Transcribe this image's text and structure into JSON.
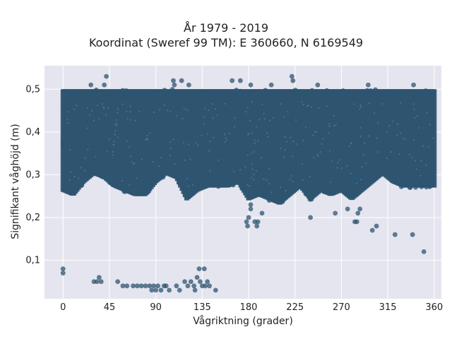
{
  "chart_data": {
    "type": "scatter",
    "title": "År 1979 - 2019",
    "subtitle": "Koordinat (Sweref 99 TM): E 360660, N 6169549",
    "xlabel": "Vågriktning (grader)",
    "ylabel": "Signifikant våghöjd (m)",
    "xlim": [
      -18,
      367
    ],
    "ylim": [
      0.01,
      0.555
    ],
    "xticks": [
      0,
      45,
      90,
      135,
      180,
      225,
      270,
      315,
      360
    ],
    "xtick_labels": [
      "0",
      "45",
      "90",
      "135",
      "180",
      "225",
      "270",
      "315",
      "360"
    ],
    "yticks": [
      0.1,
      0.2,
      0.3,
      0.4,
      0.5
    ],
    "ytick_labels": [
      "0,1",
      "0,2",
      "0,3",
      "0,4",
      "0,5"
    ],
    "grid": true,
    "background_color": "#e5e5ef",
    "marker_color": "#2e5470",
    "outlier_points": [
      {
        "x": 0,
        "y": 0.08
      },
      {
        "x": 0,
        "y": 0.07
      },
      {
        "x": 30,
        "y": 0.05
      },
      {
        "x": 33,
        "y": 0.05
      },
      {
        "x": 35,
        "y": 0.06
      },
      {
        "x": 37,
        "y": 0.05
      },
      {
        "x": 53,
        "y": 0.05
      },
      {
        "x": 58,
        "y": 0.04
      },
      {
        "x": 62,
        "y": 0.04
      },
      {
        "x": 68,
        "y": 0.04
      },
      {
        "x": 72,
        "y": 0.04
      },
      {
        "x": 76,
        "y": 0.04
      },
      {
        "x": 80,
        "y": 0.04
      },
      {
        "x": 84,
        "y": 0.04
      },
      {
        "x": 86,
        "y": 0.03
      },
      {
        "x": 88,
        "y": 0.04
      },
      {
        "x": 90,
        "y": 0.03
      },
      {
        "x": 92,
        "y": 0.04
      },
      {
        "x": 95,
        "y": 0.03
      },
      {
        "x": 98,
        "y": 0.04
      },
      {
        "x": 100,
        "y": 0.04
      },
      {
        "x": 103,
        "y": 0.03
      },
      {
        "x": 110,
        "y": 0.04
      },
      {
        "x": 113,
        "y": 0.03
      },
      {
        "x": 118,
        "y": 0.05
      },
      {
        "x": 121,
        "y": 0.04
      },
      {
        "x": 124,
        "y": 0.05
      },
      {
        "x": 127,
        "y": 0.04
      },
      {
        "x": 130,
        "y": 0.06
      },
      {
        "x": 132,
        "y": 0.08
      },
      {
        "x": 133,
        "y": 0.05
      },
      {
        "x": 135,
        "y": 0.04
      },
      {
        "x": 137,
        "y": 0.08
      },
      {
        "x": 138,
        "y": 0.04
      },
      {
        "x": 140,
        "y": 0.05
      },
      {
        "x": 142,
        "y": 0.04
      },
      {
        "x": 148,
        "y": 0.03
      },
      {
        "x": 128,
        "y": 0.03
      },
      {
        "x": 178,
        "y": 0.19
      },
      {
        "x": 179,
        "y": 0.18
      },
      {
        "x": 180,
        "y": 0.2
      },
      {
        "x": 182,
        "y": 0.22
      },
      {
        "x": 182,
        "y": 0.23
      },
      {
        "x": 186,
        "y": 0.19
      },
      {
        "x": 188,
        "y": 0.18
      },
      {
        "x": 189,
        "y": 0.19
      },
      {
        "x": 193,
        "y": 0.21
      },
      {
        "x": 200,
        "y": 0.24
      },
      {
        "x": 240,
        "y": 0.2
      },
      {
        "x": 264,
        "y": 0.21
      },
      {
        "x": 276,
        "y": 0.22
      },
      {
        "x": 283,
        "y": 0.19
      },
      {
        "x": 285,
        "y": 0.19
      },
      {
        "x": 286,
        "y": 0.21
      },
      {
        "x": 288,
        "y": 0.22
      },
      {
        "x": 300,
        "y": 0.17
      },
      {
        "x": 304,
        "y": 0.18
      },
      {
        "x": 322,
        "y": 0.16
      },
      {
        "x": 339,
        "y": 0.16
      },
      {
        "x": 350,
        "y": 0.12
      }
    ],
    "upper_points": [
      {
        "x": 27,
        "y": 0.51
      },
      {
        "x": 40,
        "y": 0.51
      },
      {
        "x": 42,
        "y": 0.53
      },
      {
        "x": 107,
        "y": 0.52
      },
      {
        "x": 108,
        "y": 0.51
      },
      {
        "x": 115,
        "y": 0.52
      },
      {
        "x": 122,
        "y": 0.51
      },
      {
        "x": 164,
        "y": 0.52
      },
      {
        "x": 172,
        "y": 0.52
      },
      {
        "x": 182,
        "y": 0.51
      },
      {
        "x": 202,
        "y": 0.51
      },
      {
        "x": 222,
        "y": 0.53
      },
      {
        "x": 223,
        "y": 0.52
      },
      {
        "x": 247,
        "y": 0.51
      },
      {
        "x": 296,
        "y": 0.51
      },
      {
        "x": 340,
        "y": 0.51
      }
    ],
    "dense_band_lower_envelope": [
      {
        "x": 0,
        "y": 0.26
      },
      {
        "x": 10,
        "y": 0.25
      },
      {
        "x": 20,
        "y": 0.28
      },
      {
        "x": 30,
        "y": 0.3
      },
      {
        "x": 40,
        "y": 0.29
      },
      {
        "x": 50,
        "y": 0.27
      },
      {
        "x": 60,
        "y": 0.26
      },
      {
        "x": 70,
        "y": 0.25
      },
      {
        "x": 80,
        "y": 0.25
      },
      {
        "x": 90,
        "y": 0.28
      },
      {
        "x": 100,
        "y": 0.3
      },
      {
        "x": 110,
        "y": 0.29
      },
      {
        "x": 120,
        "y": 0.24
      },
      {
        "x": 130,
        "y": 0.26
      },
      {
        "x": 140,
        "y": 0.27
      },
      {
        "x": 150,
        "y": 0.27
      },
      {
        "x": 160,
        "y": 0.27
      },
      {
        "x": 170,
        "y": 0.28
      },
      {
        "x": 180,
        "y": 0.24
      },
      {
        "x": 190,
        "y": 0.25
      },
      {
        "x": 200,
        "y": 0.24
      },
      {
        "x": 210,
        "y": 0.23
      },
      {
        "x": 220,
        "y": 0.25
      },
      {
        "x": 230,
        "y": 0.27
      },
      {
        "x": 240,
        "y": 0.24
      },
      {
        "x": 250,
        "y": 0.26
      },
      {
        "x": 260,
        "y": 0.25
      },
      {
        "x": 270,
        "y": 0.26
      },
      {
        "x": 280,
        "y": 0.24
      },
      {
        "x": 290,
        "y": 0.26
      },
      {
        "x": 300,
        "y": 0.28
      },
      {
        "x": 310,
        "y": 0.3
      },
      {
        "x": 320,
        "y": 0.28
      },
      {
        "x": 330,
        "y": 0.27
      },
      {
        "x": 340,
        "y": 0.27
      },
      {
        "x": 350,
        "y": 0.27
      },
      {
        "x": 360,
        "y": 0.27
      }
    ],
    "dense_band_upper_envelope": 0.5
  }
}
